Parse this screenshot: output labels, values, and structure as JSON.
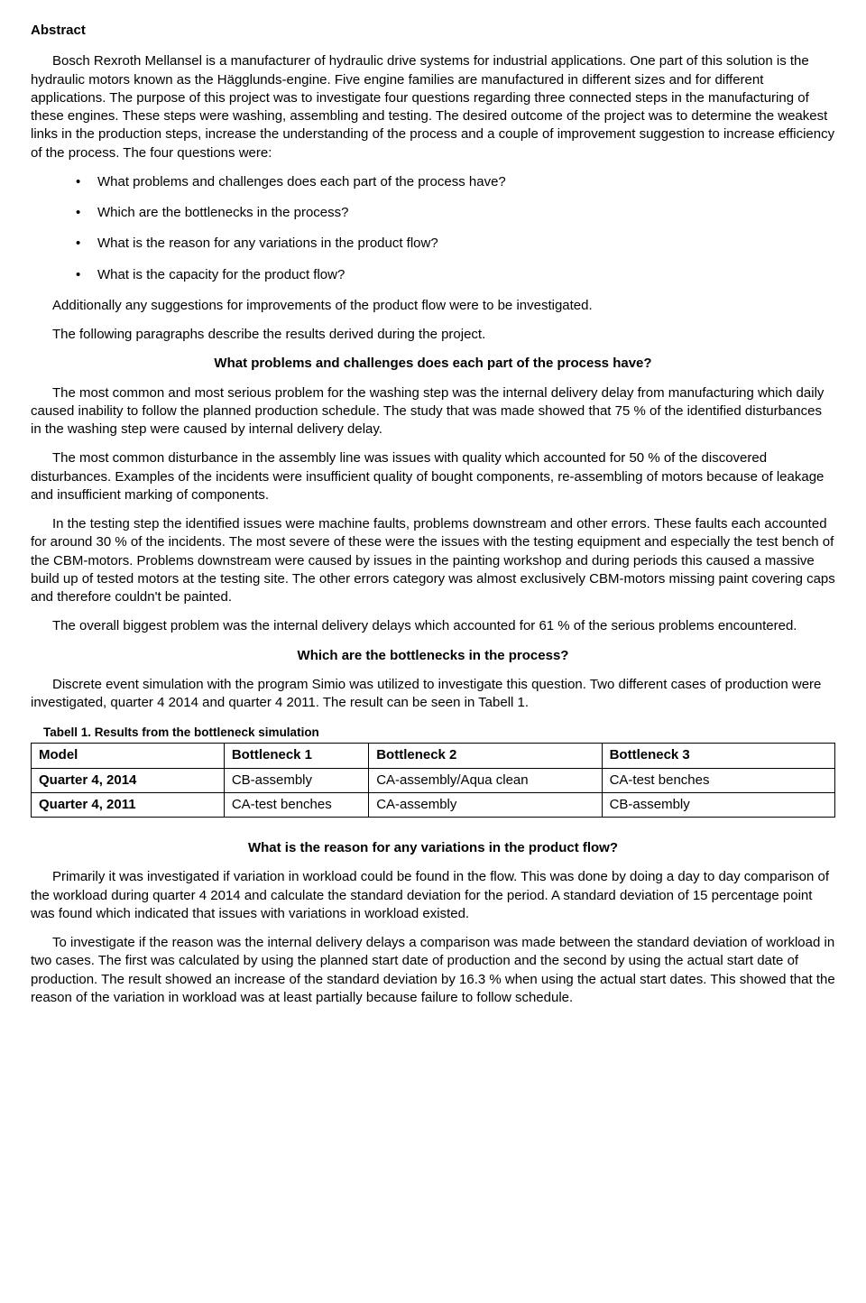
{
  "abstract_title": "Abstract",
  "intro_para": "Bosch Rexroth Mellansel is a manufacturer of hydraulic drive systems for industrial applications. One part of this solution is the hydraulic motors known as the Hägglunds-engine. Five engine families are manufactured in different sizes and for different applications. The purpose of this project was to investigate four questions regarding three connected steps in the manufacturing of these engines. These steps were washing, assembling and testing. The desired outcome of the project was to determine the weakest links in the production steps, increase the understanding of the process and a couple of improvement suggestion to increase efficiency of the process. The four questions were:",
  "questions": [
    "What problems and challenges does each part of the process have?",
    "Which are the bottlenecks in the process?",
    "What is the reason for any variations in the product flow?",
    "What is the capacity for the product flow?"
  ],
  "after_list_1": "Additionally any suggestions for improvements of the product flow were to be investigated.",
  "after_list_2": "The following paragraphs describe the results derived during the project.",
  "section1": {
    "heading": "What problems and challenges does each part of the process have?",
    "p1": "The most common and most serious problem for the washing step was the internal delivery delay from manufacturing which daily caused inability to follow the planned production schedule. The study that was made showed that 75 % of the identified disturbances in the washing step were caused by internal delivery delay.",
    "p2": "The most common disturbance in the assembly line was issues with quality which accounted for 50 % of the discovered disturbances. Examples of the incidents were insufficient quality of bought components, re-assembling of motors because of leakage and insufficient marking of components.",
    "p3": "In the testing step the identified issues were machine faults, problems downstream and other errors. These faults each accounted for around 30 % of the incidents. The most severe of these were the issues with the testing equipment and especially the test bench of the CBM-motors. Problems downstream were caused by issues in the painting workshop and during periods this caused a massive build up of tested motors at the testing site. The other errors category was almost exclusively CBM-motors missing paint covering caps and therefore couldn't be painted.",
    "p4": "The overall biggest problem was the internal delivery delays which accounted for 61 % of the serious problems encountered."
  },
  "section2": {
    "heading": "Which are the bottlenecks in the process?",
    "p1": "Discrete event simulation with the program Simio was utilized to investigate this question. Two different cases of production were investigated, quarter 4 2014 and quarter 4 2011. The result can be seen in Tabell 1.",
    "table_caption": "Tabell 1. Results from the bottleneck simulation",
    "table": {
      "columns": [
        "Model",
        "Bottleneck 1",
        "Bottleneck 2",
        "Bottleneck 3"
      ],
      "rows": [
        [
          "Quarter 4, 2014",
          "CB-assembly",
          "CA-assembly/Aqua clean",
          "CA-test benches"
        ],
        [
          "Quarter 4, 2011",
          "CA-test benches",
          "CA-assembly",
          "CB-assembly"
        ]
      ]
    }
  },
  "section3": {
    "heading": "What is the reason for any variations in the product flow?",
    "p1": "Primarily it was investigated if variation in workload could be found in the flow. This was done by doing a day to day comparison of the workload during quarter 4 2014 and calculate the standard deviation for the period. A standard deviation of 15 percentage point was found which indicated that issues with variations in workload existed.",
    "p2": "To investigate if the reason was the internal delivery delays a comparison was made between the standard deviation of workload in two cases. The first was calculated by using the planned start date of production and the second by using the actual start date of production. The result showed an increase of the standard deviation by 16.3 % when using the actual start dates. This showed that the reason of the variation in workload was at least partially because failure to follow schedule."
  }
}
